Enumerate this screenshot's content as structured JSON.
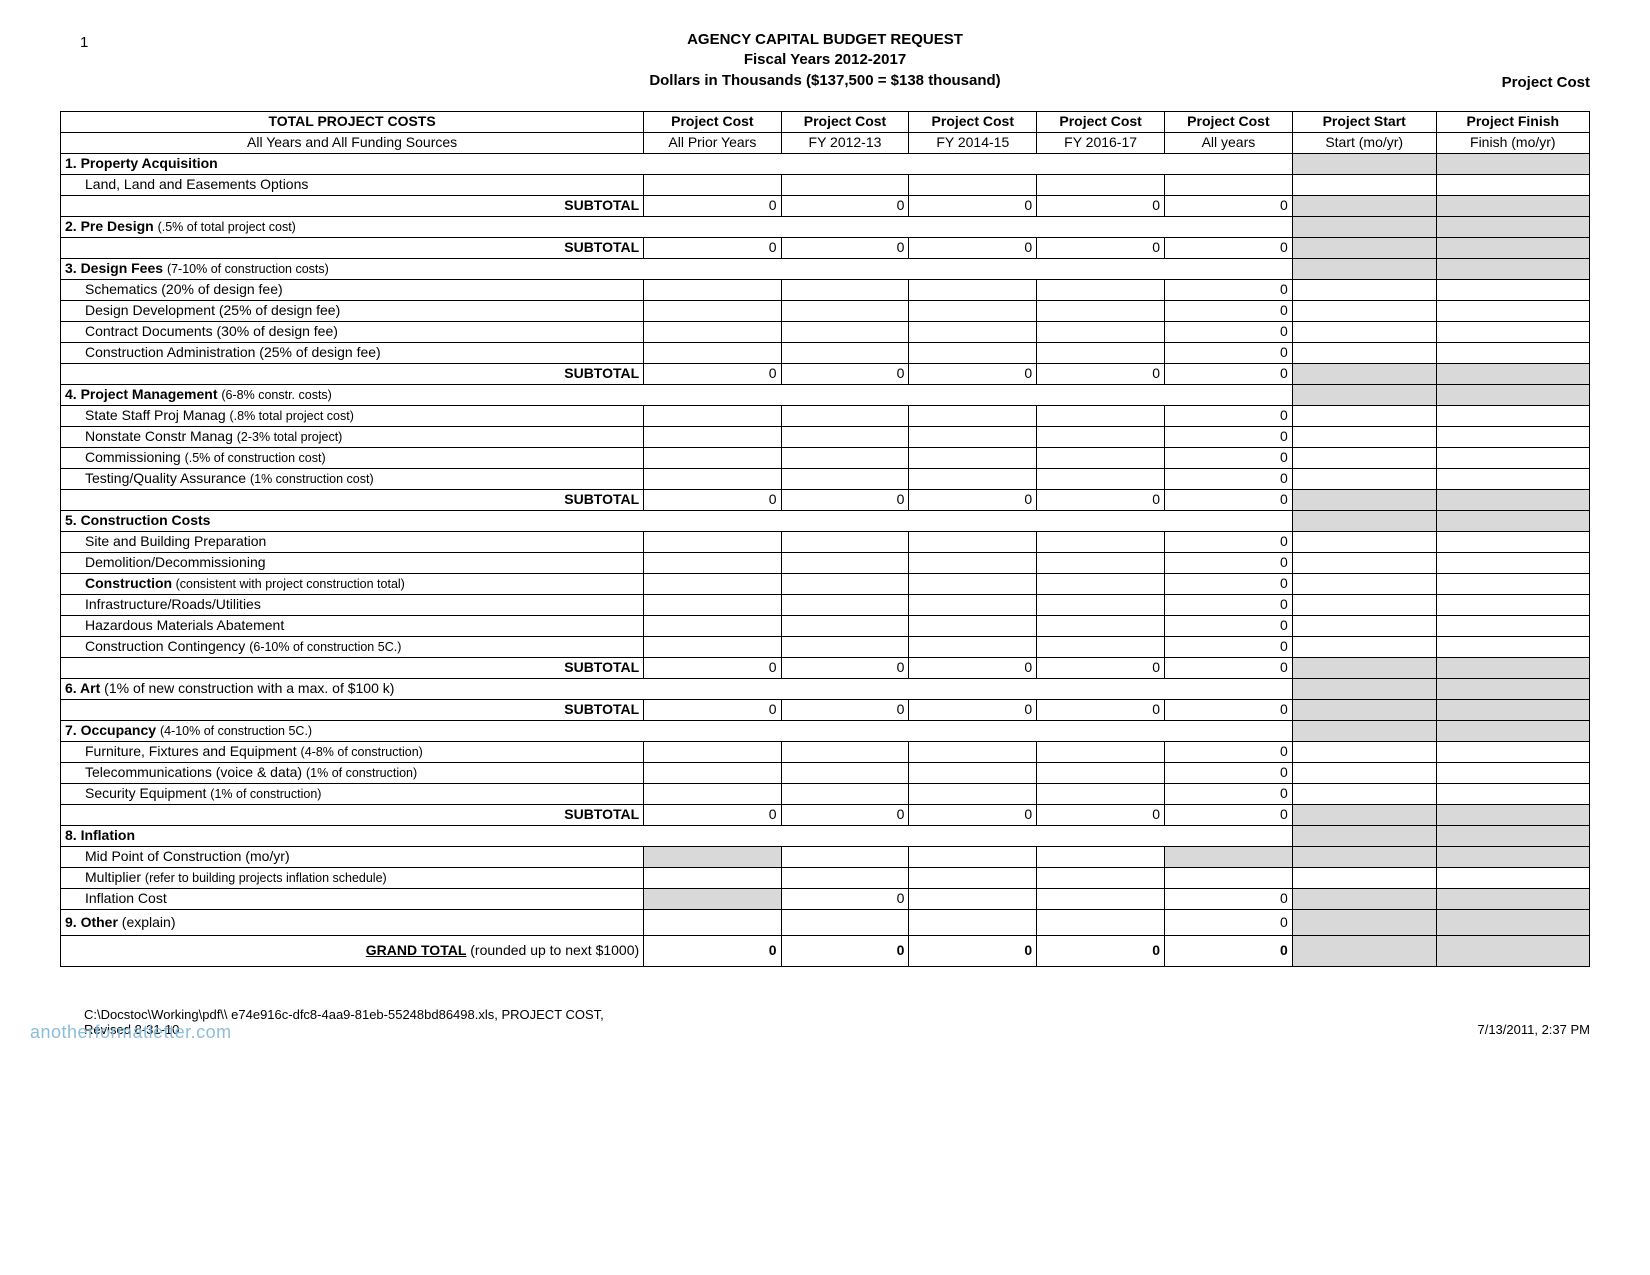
{
  "page_number": "1",
  "header": {
    "line1": "AGENCY CAPITAL BUDGET REQUEST",
    "line2": "Fiscal Years 2012-2017",
    "line3": "Dollars in Thousands ($137,500 = $138 thousand)",
    "right_label": "Project Cost"
  },
  "columns": {
    "h0a": "TOTAL PROJECT COSTS",
    "h0b": "All Years and All Funding Sources",
    "h1a": "Project Cost",
    "h1b": "All Prior Years",
    "h2a": "Project Cost",
    "h2b": "FY 2012-13",
    "h3a": "Project Cost",
    "h3b": "FY 2014-15",
    "h4a": "Project Cost",
    "h4b": "FY 2016-17",
    "h5a": "Project Cost",
    "h5b": "All years",
    "h6a": "Project Start",
    "h6b": "Start (mo/yr)",
    "h7a": "Project Finish",
    "h7b": "Finish (mo/yr)"
  },
  "sections": [
    {
      "type": "section",
      "title": "1. Property Acquisition",
      "sub": ""
    },
    {
      "type": "item",
      "label": "Land, Land and Easements Options",
      "c5": ""
    },
    {
      "type": "subtotal",
      "c1": "0",
      "c2": "0",
      "c3": "0",
      "c4": "0",
      "c5": "0"
    },
    {
      "type": "section",
      "title": "2. Pre Design",
      "sub": "(.5% of total project cost)"
    },
    {
      "type": "subtotal",
      "c1": "0",
      "c2": "0",
      "c3": "0",
      "c4": "0",
      "c5": "0"
    },
    {
      "type": "section",
      "title": "3. Design Fees",
      "sub": "(7-10% of construction costs)"
    },
    {
      "type": "item",
      "label": "Schematics (20% of design fee)",
      "c5": "0"
    },
    {
      "type": "item",
      "label": "Design Development (25% of design fee)",
      "c5": "0"
    },
    {
      "type": "item",
      "label": "Contract Documents (30% of design fee)",
      "c5": "0"
    },
    {
      "type": "item",
      "label": "Construction Administration (25% of design fee)",
      "c5": "0"
    },
    {
      "type": "subtotal",
      "c1": "0",
      "c2": "0",
      "c3": "0",
      "c4": "0",
      "c5": "0"
    },
    {
      "type": "section",
      "title": "4. Project Management",
      "sub": "(6-8% constr. costs)"
    },
    {
      "type": "item-mixed",
      "label": "State Staff Proj Manag ",
      "sub": "(.8% total project cost)",
      "c5": "0"
    },
    {
      "type": "item-mixed",
      "label": "Nonstate Constr Manag ",
      "sub": "(2-3% total project)",
      "c5": "0"
    },
    {
      "type": "item-mixed",
      "label": "Commissioning ",
      "sub": "(.5% of construction cost)",
      "c5": "0"
    },
    {
      "type": "item-mixed",
      "label": "Testing/Quality Assurance ",
      "sub": "(1% construction cost)",
      "c5": "0"
    },
    {
      "type": "subtotal",
      "c1": "0",
      "c2": "0",
      "c3": "0",
      "c4": "0",
      "c5": "0"
    },
    {
      "type": "section",
      "title": "5. Construction Costs",
      "sub": ""
    },
    {
      "type": "item",
      "label": "Site and Building Preparation",
      "c5": "0"
    },
    {
      "type": "item",
      "label": "Demolition/Decommissioning",
      "c5": "0"
    },
    {
      "type": "item-mixed-bold",
      "label": "Construction",
      "sub": " (consistent with project construction total)",
      "c5": "0"
    },
    {
      "type": "item",
      "label": "Infrastructure/Roads/Utilities",
      "c5": "0"
    },
    {
      "type": "item",
      "label": "Hazardous Materials Abatement",
      "c5": "0"
    },
    {
      "type": "item-mixed",
      "label": "Construction Contingency ",
      "sub": "(6-10% of construction 5C.)",
      "c5": "0"
    },
    {
      "type": "subtotal",
      "c1": "0",
      "c2": "0",
      "c3": "0",
      "c4": "0",
      "c5": "0"
    },
    {
      "type": "section-only",
      "title": "6. Art",
      "sub": " (1% of new construction with a max. of $100 k)"
    },
    {
      "type": "subtotal",
      "c1": "0",
      "c2": "0",
      "c3": "0",
      "c4": "0",
      "c5": "0"
    },
    {
      "type": "section",
      "title": "7. Occupancy",
      "sub": "(4-10% of construction 5C.)"
    },
    {
      "type": "item-mixed",
      "label": "Furniture, Fixtures and Equipment ",
      "sub": "(4-8% of construction)",
      "c5": "0"
    },
    {
      "type": "item-mixed",
      "label": "Telecommunications (voice & data) ",
      "sub": "(1% of construction)",
      "c5": "0"
    },
    {
      "type": "item-mixed",
      "label": "Security Equipment ",
      "sub": "(1% of construction)",
      "c5": "0"
    },
    {
      "type": "subtotal",
      "c1": "0",
      "c2": "0",
      "c3": "0",
      "c4": "0",
      "c5": "0"
    },
    {
      "type": "section",
      "title": "8. Inflation",
      "sub": ""
    },
    {
      "type": "item-gray",
      "label": "Mid Point of Construction (mo/yr)"
    },
    {
      "type": "item-mixed",
      "label": "Multiplier ",
      "sub": "(refer to building projects inflation schedule)"
    },
    {
      "type": "item-inflation",
      "label": "Inflation Cost",
      "c2": "0",
      "c5": "0"
    },
    {
      "type": "section-only-c5",
      "title": "9. Other",
      "sub": " (explain)",
      "c5": "0"
    },
    {
      "type": "grand",
      "label_bold": "GRAND TOTAL",
      "label_rest": "  (rounded up to next  $1000)",
      "c1": "0",
      "c2": "0",
      "c3": "0",
      "c4": "0",
      "c5": "0"
    }
  ],
  "footer": {
    "path": "C:\\Docstoc\\Working\\pdf\\\\ e74e916c-dfc8-4aa9-81eb-55248bd86498.xls,  PROJECT COST,",
    "revised": "Revised 8-31-10",
    "right": "7/13/2011, 2:37 PM",
    "watermark": "anotherformatletter.com"
  },
  "style": {
    "gray": "#d9d9d9",
    "border": "#000000",
    "text": "#000000",
    "wm": "#8bbdd9"
  }
}
